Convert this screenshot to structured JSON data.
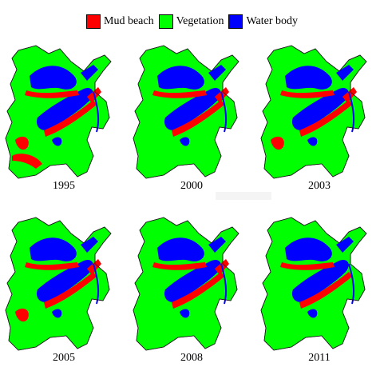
{
  "legend": {
    "items": [
      {
        "label": "Mud beach",
        "color": "#ff0000"
      },
      {
        "label": "Vegetation",
        "color": "#00ff00"
      },
      {
        "label": "Water body",
        "color": "#0000ff"
      }
    ]
  },
  "panels": [
    {
      "year": "1995",
      "mud_level": 0.9
    },
    {
      "year": "2000",
      "mud_level": 0.45
    },
    {
      "year": "2003",
      "mud_level": 0.7
    },
    {
      "year": "2005",
      "mud_level": 0.6
    },
    {
      "year": "2008",
      "mud_level": 0.55
    },
    {
      "year": "2011",
      "mud_level": 0.35
    }
  ],
  "colors": {
    "mud": "#ff0000",
    "vegetation": "#00ff00",
    "water": "#0000ff",
    "outline": "#1a1a1a"
  }
}
